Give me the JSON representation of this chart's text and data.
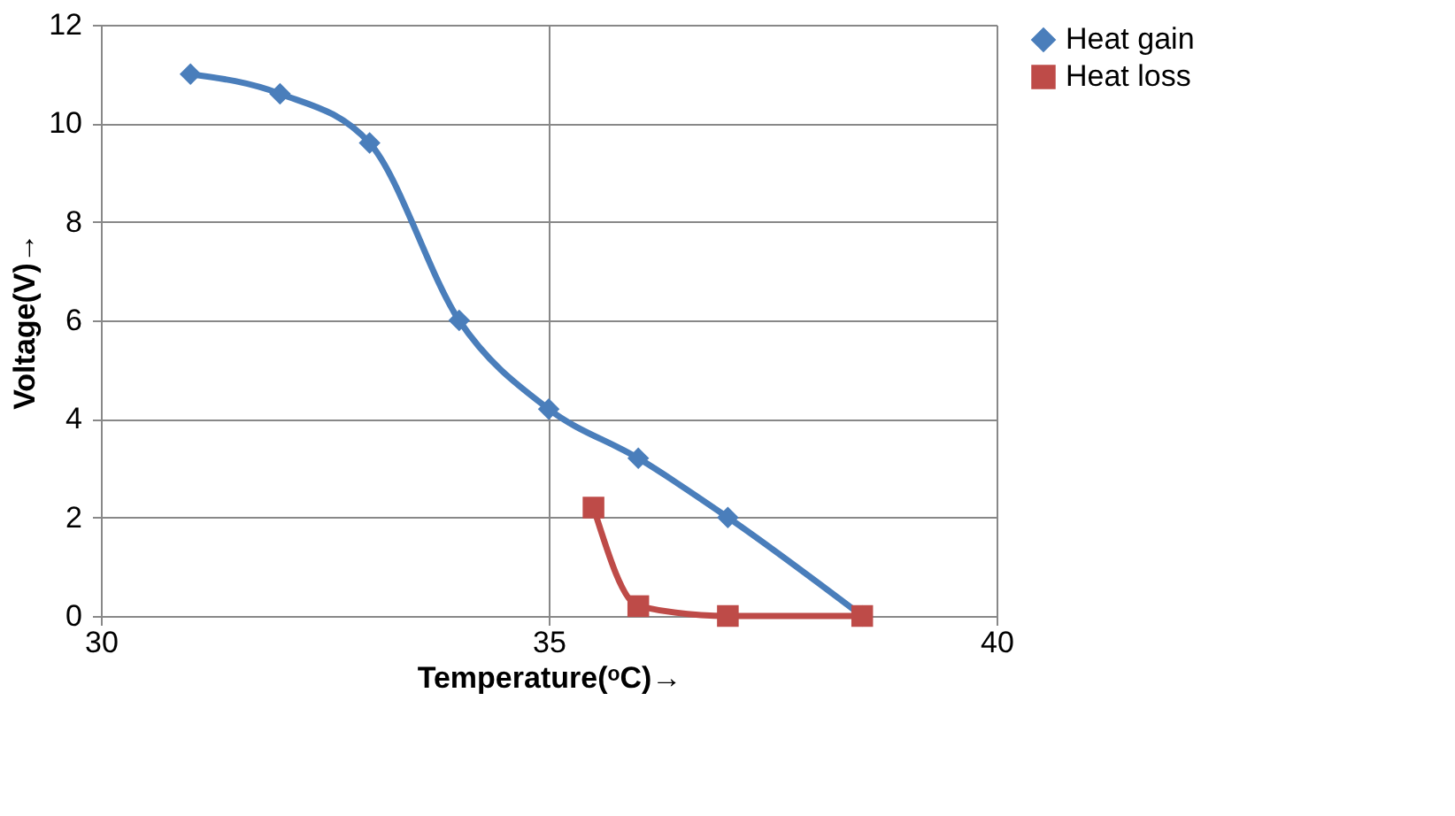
{
  "chart_data": {
    "type": "line",
    "xlabel": "Temperature(ᵒC)→",
    "ylabel": "Voltage(V)→",
    "xlim": [
      30,
      40
    ],
    "xticks": [
      30,
      35,
      40
    ],
    "ylim": [
      0,
      12
    ],
    "yticks": [
      0,
      2,
      4,
      6,
      8,
      10,
      12
    ],
    "grid": true,
    "legend": "right",
    "line_style": "solid",
    "series": [
      {
        "name": "Heat gain",
        "color": "#4a7ebb",
        "marker": "diamond",
        "x": [
          31,
          32,
          33,
          34,
          35,
          36,
          37,
          38.5
        ],
        "values": [
          11,
          10.6,
          9.6,
          6,
          4.2,
          3.2,
          2,
          0
        ]
      },
      {
        "name": "Heat loss",
        "color": "#be4b48",
        "marker": "square",
        "x": [
          35.5,
          36,
          37,
          38.5
        ],
        "values": [
          2.2,
          0.2,
          0,
          0
        ]
      }
    ]
  }
}
